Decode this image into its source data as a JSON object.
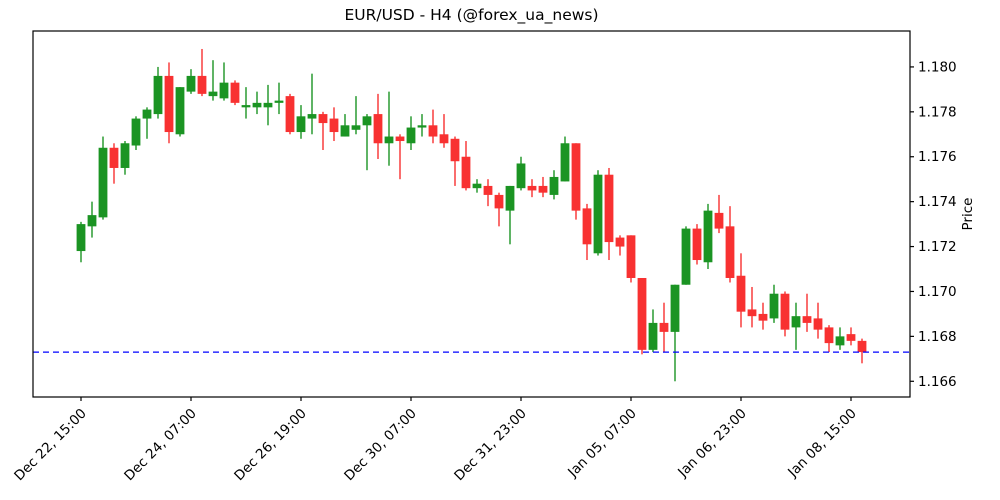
{
  "figure": {
    "title": "EUR/USD - H4 (@forex_ua_news)"
  },
  "chart_data": {
    "type": "candlestick",
    "title": "EUR/USD - H4 (@forex_ua_news)",
    "xlabel": "",
    "ylabel": "Price",
    "ylim": [
      1.1653,
      1.1816
    ],
    "grid": false,
    "y_axis_side": "right",
    "yticks": [
      1.166,
      1.168,
      1.17,
      1.172,
      1.174,
      1.176,
      1.178,
      1.18
    ],
    "ytick_labels": [
      "1.166",
      "1.168",
      "1.170",
      "1.172",
      "1.174",
      "1.176",
      "1.178",
      "1.180"
    ],
    "xticks": {
      "indices": [
        0,
        10,
        20,
        30,
        40,
        50,
        60,
        70
      ],
      "labels": [
        "Dec 22, 15:00",
        "Dec 24, 07:00",
        "Dec 26, 19:00",
        "Dec 30, 07:00",
        "Dec 31, 23:00",
        "Jan 05, 07:00",
        "Jan 06, 23:00",
        "Jan 08, 15:00"
      ],
      "rotation_deg": 45
    },
    "support_line": {
      "price": 1.1673,
      "color": "#0000ff",
      "style": "dashed"
    },
    "colors": {
      "up": "#1b9423",
      "down": "#f83131",
      "axis": "#000000"
    },
    "candles_format": [
      "open",
      "high",
      "low",
      "close"
    ],
    "candles": [
      [
        1.1718,
        1.1731,
        1.1713,
        1.173
      ],
      [
        1.1729,
        1.174,
        1.1724,
        1.1734
      ],
      [
        1.1733,
        1.1769,
        1.1732,
        1.1764
      ],
      [
        1.1764,
        1.1766,
        1.1748,
        1.1755
      ],
      [
        1.1755,
        1.1767,
        1.1752,
        1.1766
      ],
      [
        1.1765,
        1.1778,
        1.1763,
        1.1777
      ],
      [
        1.1777,
        1.1782,
        1.1768,
        1.1781
      ],
      [
        1.1779,
        1.18,
        1.1777,
        1.1796
      ],
      [
        1.1796,
        1.1802,
        1.1766,
        1.1771
      ],
      [
        1.177,
        1.1791,
        1.1769,
        1.1791
      ],
      [
        1.1789,
        1.1799,
        1.1788,
        1.1796
      ],
      [
        1.1796,
        1.1808,
        1.1787,
        1.1788
      ],
      [
        1.1787,
        1.1803,
        1.1785,
        1.1789
      ],
      [
        1.1786,
        1.1802,
        1.1785,
        1.1793
      ],
      [
        1.1793,
        1.1794,
        1.1783,
        1.1784
      ],
      [
        1.1782,
        1.1791,
        1.1777,
        1.1783
      ],
      [
        1.1782,
        1.1789,
        1.1779,
        1.1784
      ],
      [
        1.1782,
        1.1792,
        1.1774,
        1.1784
      ],
      [
        1.1784,
        1.1793,
        1.1779,
        1.1785
      ],
      [
        1.1787,
        1.1788,
        1.177,
        1.1771
      ],
      [
        1.1771,
        1.1783,
        1.1768,
        1.1778
      ],
      [
        1.1777,
        1.1797,
        1.177,
        1.1779
      ],
      [
        1.1779,
        1.178,
        1.1763,
        1.1775
      ],
      [
        1.1777,
        1.1782,
        1.1767,
        1.1771
      ],
      [
        1.1769,
        1.1779,
        1.1769,
        1.1774
      ],
      [
        1.1772,
        1.1787,
        1.177,
        1.1774
      ],
      [
        1.1774,
        1.1779,
        1.1754,
        1.1778
      ],
      [
        1.1779,
        1.1788,
        1.1759,
        1.1766
      ],
      [
        1.1766,
        1.1789,
        1.1756,
        1.1769
      ],
      [
        1.1769,
        1.177,
        1.175,
        1.1767
      ],
      [
        1.1766,
        1.1778,
        1.1763,
        1.1773
      ],
      [
        1.1773,
        1.1779,
        1.1769,
        1.1774
      ],
      [
        1.1774,
        1.1781,
        1.1766,
        1.1769
      ],
      [
        1.177,
        1.1779,
        1.1764,
        1.1766
      ],
      [
        1.1768,
        1.1769,
        1.1747,
        1.1758
      ],
      [
        1.176,
        1.1767,
        1.1745,
        1.1746
      ],
      [
        1.1746,
        1.175,
        1.1744,
        1.1748
      ],
      [
        1.1747,
        1.175,
        1.1738,
        1.1743
      ],
      [
        1.1743,
        1.1744,
        1.1729,
        1.1737
      ],
      [
        1.1736,
        1.1747,
        1.1721,
        1.1747
      ],
      [
        1.1746,
        1.176,
        1.1745,
        1.1757
      ],
      [
        1.1747,
        1.175,
        1.1742,
        1.1745
      ],
      [
        1.1747,
        1.1751,
        1.1742,
        1.1744
      ],
      [
        1.1743,
        1.1754,
        1.1741,
        1.1751
      ],
      [
        1.1749,
        1.1769,
        1.1749,
        1.1766
      ],
      [
        1.1766,
        1.1766,
        1.1732,
        1.1736
      ],
      [
        1.1737,
        1.1739,
        1.1714,
        1.1721
      ],
      [
        1.1717,
        1.1754,
        1.1716,
        1.1752
      ],
      [
        1.1752,
        1.1755,
        1.1714,
        1.1722
      ],
      [
        1.1724,
        1.1725,
        1.1716,
        1.172
      ],
      [
        1.1725,
        1.1725,
        1.1704,
        1.1706
      ],
      [
        1.1706,
        1.1706,
        1.1672,
        1.1674
      ],
      [
        1.1674,
        1.1692,
        1.1673,
        1.1686
      ],
      [
        1.1686,
        1.1695,
        1.1673,
        1.1682
      ],
      [
        1.1682,
        1.1703,
        1.166,
        1.1703
      ],
      [
        1.1703,
        1.1729,
        1.1703,
        1.1728
      ],
      [
        1.1728,
        1.173,
        1.1712,
        1.1714
      ],
      [
        1.1713,
        1.1739,
        1.171,
        1.1736
      ],
      [
        1.1735,
        1.1743,
        1.1726,
        1.1728
      ],
      [
        1.1729,
        1.1738,
        1.1704,
        1.1706
      ],
      [
        1.1707,
        1.1717,
        1.1684,
        1.1691
      ],
      [
        1.1692,
        1.1702,
        1.1684,
        1.1689
      ],
      [
        1.169,
        1.1695,
        1.1683,
        1.1687
      ],
      [
        1.1688,
        1.1703,
        1.1686,
        1.1699
      ],
      [
        1.1699,
        1.17,
        1.168,
        1.1683
      ],
      [
        1.1684,
        1.1695,
        1.1674,
        1.1689
      ],
      [
        1.1689,
        1.1699,
        1.1682,
        1.1686
      ],
      [
        1.1688,
        1.1695,
        1.1679,
        1.1683
      ],
      [
        1.1684,
        1.1685,
        1.1673,
        1.1677
      ],
      [
        1.1676,
        1.1684,
        1.1674,
        1.168
      ],
      [
        1.1681,
        1.1684,
        1.1676,
        1.1678
      ],
      [
        1.1678,
        1.1679,
        1.1668,
        1.1673
      ]
    ]
  }
}
